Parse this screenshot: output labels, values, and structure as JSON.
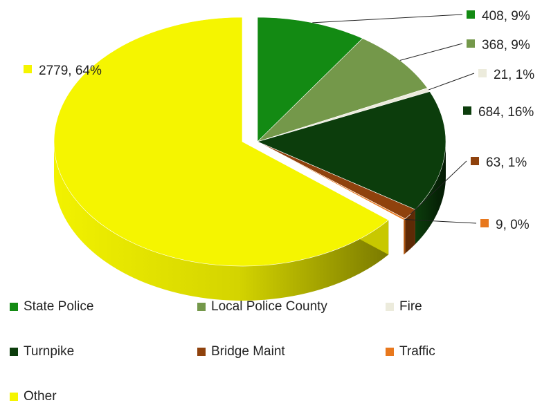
{
  "chart_data": {
    "type": "pie",
    "title": "",
    "slices": [
      {
        "name": "State Police",
        "value": 408,
        "percent": "9%",
        "label": "408, 9%",
        "color": "#138a13",
        "dark": "#0b5a0b"
      },
      {
        "name": "Local Police County",
        "value": 368,
        "percent": "9%",
        "label": "368, 9%",
        "color": "#74984a",
        "dark": "#4d6a2e"
      },
      {
        "name": "Fire",
        "value": 21,
        "percent": "1%",
        "label": "21, 1%",
        "color": "#ecebdc",
        "dark": "#b7b6a6"
      },
      {
        "name": "Turnpike",
        "value": 684,
        "percent": "16%",
        "label": "684, 16%",
        "color": "#0c3d0c",
        "dark": "#062206"
      },
      {
        "name": "Bridge Maint",
        "value": 63,
        "percent": "1%",
        "label": "63, 1%",
        "color": "#8f420d",
        "dark": "#5e2a06"
      },
      {
        "name": "Traffic",
        "value": 9,
        "percent": "0%",
        "label": "9, 0%",
        "color": "#e8781d",
        "dark": "#b0540c"
      },
      {
        "name": "Other",
        "value": 2779,
        "percent": "64%",
        "label": "2779, 64%",
        "color": "#f5f500",
        "dark": "#8f8f00"
      }
    ],
    "exploded": "Other",
    "style": "3d",
    "legend": "bottom"
  }
}
